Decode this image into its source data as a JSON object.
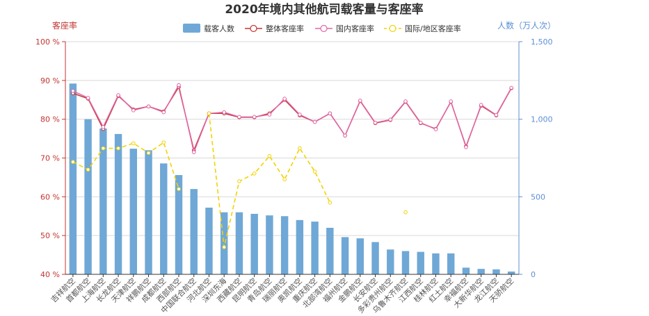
{
  "chart_data": {
    "type": "bar",
    "title": "2020年境内其他航司载客量与客座率",
    "left_axis": {
      "name": "客座率",
      "ticks": [
        "40 %",
        "50 %",
        "60 %",
        "70 %",
        "80 %",
        "90 %",
        "100 %"
      ],
      "min": 40,
      "max": 100,
      "color": "#c23531"
    },
    "right_axis": {
      "name": "人数（万人次）",
      "ticks": [
        "0",
        "500",
        "1,000",
        "1,500"
      ],
      "min": 0,
      "max": 1500,
      "color": "#5b8fd6"
    },
    "grid": true,
    "legend_position": "top-center",
    "categories": [
      "吉祥航空",
      "首都航空",
      "上海航空",
      "长龙航空",
      "天津航空",
      "祥鹏航空",
      "成都航空",
      "西部航空",
      "中国联合航空",
      "河北航空",
      "深圳东海",
      "西藏航空",
      "昆明航空",
      "青岛航空",
      "瑞丽航空",
      "奥凯航空",
      "重庆航空",
      "北部湾航空",
      "福州航空",
      "金鹏航空",
      "长安航空",
      "多彩贵州航空",
      "乌鲁木齐航空",
      "江西航空",
      "桂林航空",
      "红土航空",
      "幸福航空",
      "大新华航空",
      "龙江航空",
      "天骄航空"
    ],
    "series": [
      {
        "name": "载客人数",
        "kind": "bar",
        "axis": "right",
        "color": "#6fa8d6",
        "values": [
          1230,
          1000,
          940,
          905,
          810,
          800,
          715,
          640,
          550,
          430,
          400,
          400,
          390,
          380,
          375,
          350,
          340,
          300,
          240,
          232,
          208,
          160,
          150,
          145,
          135,
          135,
          43,
          35,
          32,
          18
        ]
      },
      {
        "name": "整体客座率",
        "kind": "line",
        "axis": "left",
        "color": "#c23531",
        "values": [
          86.7,
          85.3,
          77.5,
          86.0,
          82.5,
          83.3,
          82.0,
          88.3,
          72.0,
          81.5,
          81.5,
          80.5,
          80.5,
          81.5,
          85.0,
          81.0,
          79.3,
          81.5,
          75.8,
          84.7,
          79.0,
          79.8,
          84.5,
          79.0,
          77.5,
          84.5,
          73.0,
          83.5,
          81.0,
          88.0
        ]
      },
      {
        "name": "国内客座率",
        "kind": "line",
        "axis": "left",
        "color": "#e066a8",
        "values": [
          87.3,
          85.5,
          78.0,
          86.2,
          82.3,
          83.3,
          81.8,
          88.8,
          71.5,
          81.5,
          81.8,
          80.6,
          80.6,
          81.2,
          85.3,
          81.2,
          79.3,
          81.5,
          75.8,
          84.8,
          79.1,
          79.9,
          84.6,
          79.1,
          77.4,
          84.6,
          72.8,
          83.7,
          81.1,
          88.1
        ]
      },
      {
        "name": "国际/地区客座率",
        "kind": "line",
        "axis": "left",
        "color": "#f2d300",
        "dashed": true,
        "values": [
          69.0,
          67.0,
          72.5,
          72.5,
          73.8,
          71.3,
          74.0,
          62.0,
          null,
          81.5,
          47.0,
          64.0,
          66.0,
          70.5,
          64.5,
          72.5,
          66.5,
          58.5,
          null,
          null,
          null,
          null,
          56.0,
          null,
          null,
          null,
          null,
          null,
          null,
          null
        ]
      }
    ]
  }
}
